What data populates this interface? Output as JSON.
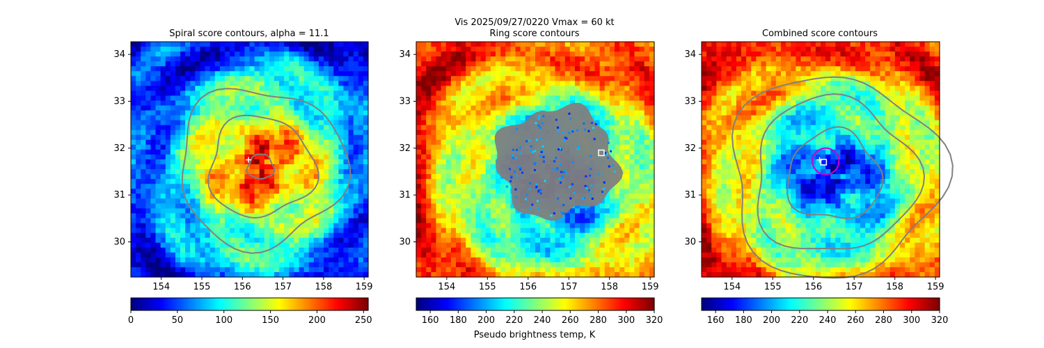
{
  "figure": {
    "suptitle": "Vis  2025/09/27/0220    Vmax = 60 kt",
    "colorbar_label": "Pseudo brightness temp, K"
  },
  "chart_data": [
    {
      "type": "heatmap",
      "title": "Spiral score contours, alpha = 11.1",
      "xlim": [
        153.25,
        159.1
      ],
      "ylim": [
        29.25,
        34.27
      ],
      "xticks": [
        "154",
        "155",
        "156",
        "157",
        "158",
        "159"
      ],
      "yticks": [
        "30",
        "31",
        "32",
        "33",
        "34"
      ],
      "center": [
        156.45,
        31.6
      ],
      "cold_core": true,
      "contour_rings_deg": [
        0.32,
        1.3,
        2.05
      ],
      "contour_color": "#808080",
      "markers": [
        {
          "type": "plus",
          "lon": 156.15,
          "lat": 31.75,
          "color": "#ffffff"
        }
      ],
      "colorbar": {
        "cmap": "jet_r",
        "range": [
          0,
          255
        ],
        "ticks": [
          "0",
          "50",
          "100",
          "150",
          "200",
          "250"
        ]
      }
    },
    {
      "type": "heatmap",
      "title": "Ring score contours",
      "xlim": [
        153.25,
        159.1
      ],
      "ylim": [
        29.25,
        34.27
      ],
      "xticks": [
        "154",
        "155",
        "156",
        "157",
        "158",
        "159"
      ],
      "yticks": [
        "30",
        "31",
        "32",
        "33",
        "34"
      ],
      "center": [
        156.6,
        31.3
      ],
      "cold_core": false,
      "blob": {
        "lon": 156.7,
        "lat": 31.7,
        "color": "#808080"
      },
      "markers": [
        {
          "type": "square",
          "lon": 157.8,
          "lat": 31.9,
          "color": "#ffffff"
        }
      ],
      "colorbar": {
        "cmap": "jet",
        "range": [
          150,
          320
        ],
        "ticks": [
          "160",
          "180",
          "200",
          "220",
          "240",
          "260",
          "280",
          "300",
          "320"
        ]
      }
    },
    {
      "type": "heatmap",
      "title": "Combined score contours",
      "xlim": [
        153.25,
        159.1
      ],
      "ylim": [
        29.25,
        34.27
      ],
      "xticks": [
        "154",
        "155",
        "156",
        "157",
        "158",
        "159"
      ],
      "yticks": [
        "30",
        "31",
        "32",
        "33",
        "34"
      ],
      "center": [
        156.5,
        31.4
      ],
      "cold_core": false,
      "contour_rings_deg": [
        1.15,
        2.0,
        2.6
      ],
      "contour_color": "#808080",
      "markers": [
        {
          "type": "circle",
          "lon": 156.3,
          "lat": 31.72,
          "color": "#cc00cc"
        },
        {
          "type": "square",
          "lon": 156.25,
          "lat": 31.7,
          "color": "#ffffff"
        },
        {
          "type": "plus",
          "lon": 156.15,
          "lat": 31.75,
          "color": "#ffffff"
        }
      ],
      "colorbar": {
        "cmap": "jet",
        "range": [
          150,
          320
        ],
        "ticks": [
          "160",
          "180",
          "200",
          "220",
          "240",
          "260",
          "280",
          "300",
          "320"
        ]
      }
    }
  ]
}
